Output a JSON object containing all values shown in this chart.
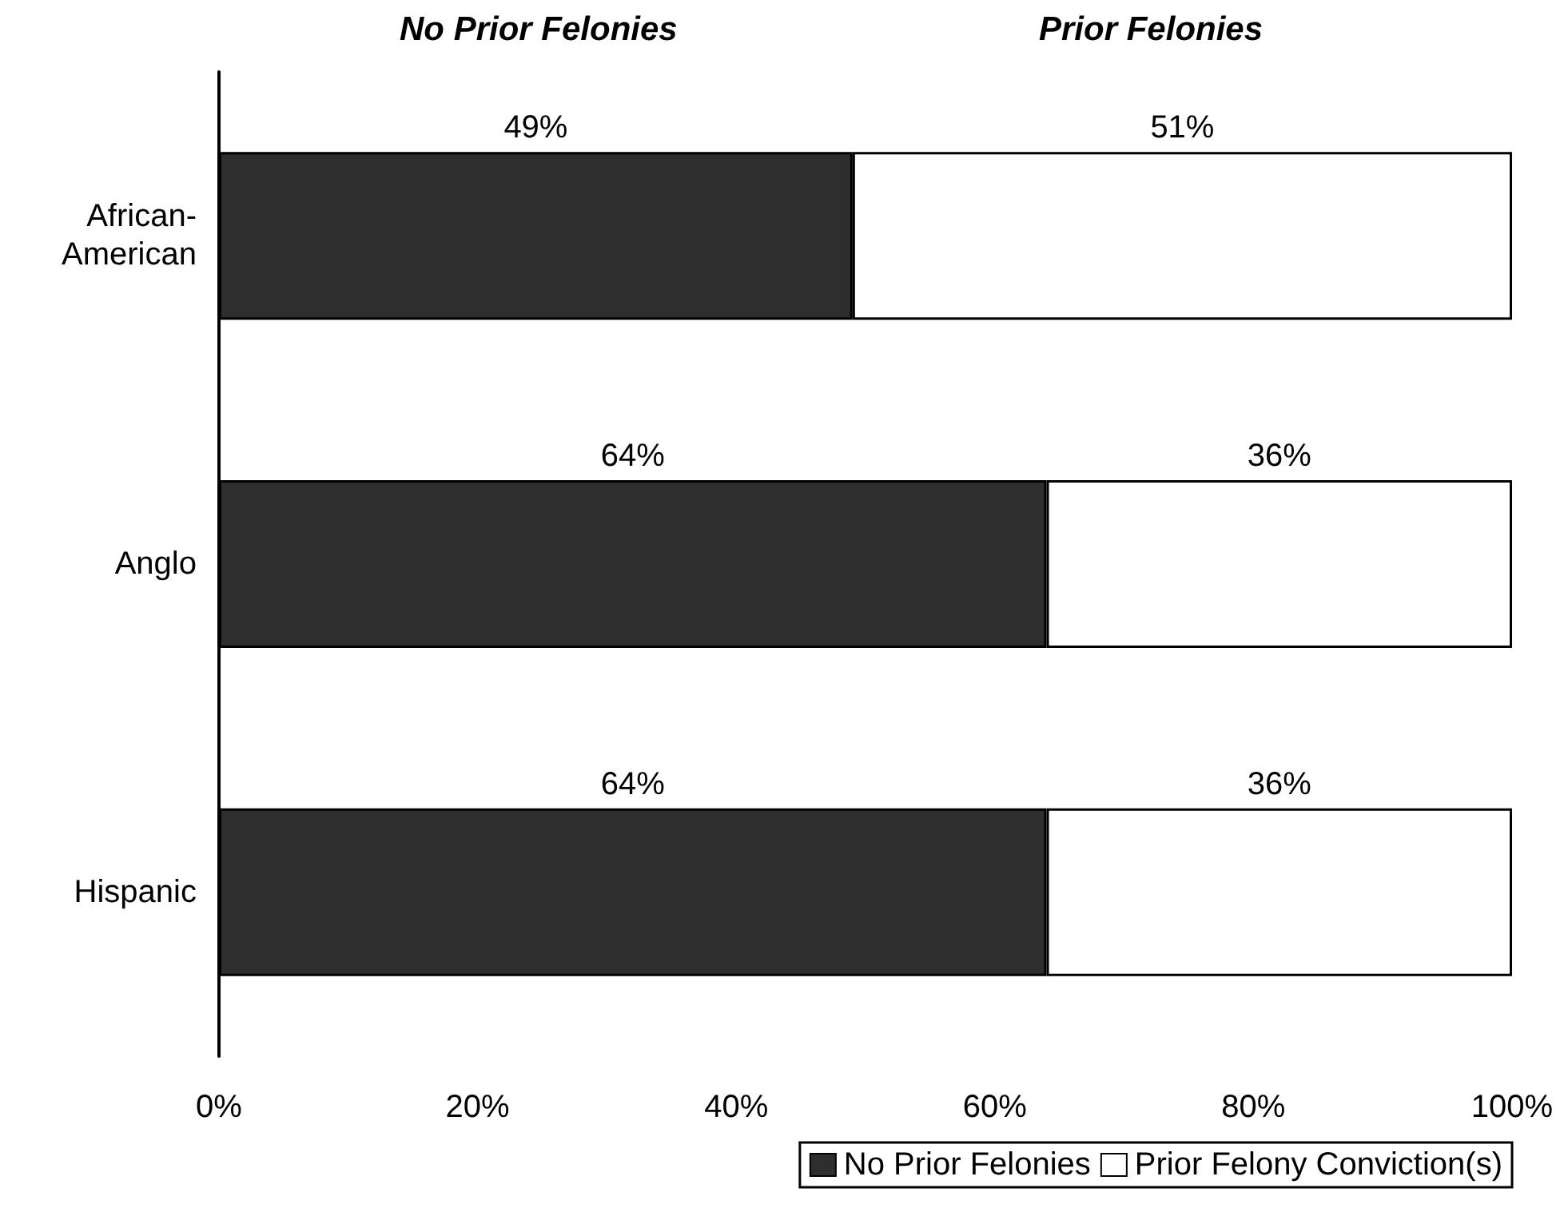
{
  "chart_data": {
    "type": "bar",
    "orientation": "horizontal",
    "stacked": true,
    "categories": [
      "African-\nAmerican",
      "Anglo",
      "Hispanic"
    ],
    "series": [
      {
        "name": "No Prior Felonies",
        "color": "#2e2e2e",
        "values": [
          49,
          64,
          64
        ],
        "value_labels": [
          "49%",
          "64%",
          "64%"
        ]
      },
      {
        "name": "Prior Felony Conviction(s)",
        "color": "#ffffff",
        "values": [
          51,
          36,
          36
        ],
        "value_labels": [
          "51%",
          "36%",
          "36%"
        ]
      }
    ],
    "xlim": [
      0,
      100
    ],
    "xticks": [
      {
        "value": 0,
        "label": "0%"
      },
      {
        "value": 20,
        "label": "20%"
      },
      {
        "value": 40,
        "label": "40%"
      },
      {
        "value": 60,
        "label": "60%"
      },
      {
        "value": 80,
        "label": "80%"
      },
      {
        "value": 100,
        "label": "100%"
      }
    ],
    "annotations": [
      "No Prior Felonies",
      "Prior Felonies"
    ],
    "grid": false,
    "legend": "bottom right"
  }
}
